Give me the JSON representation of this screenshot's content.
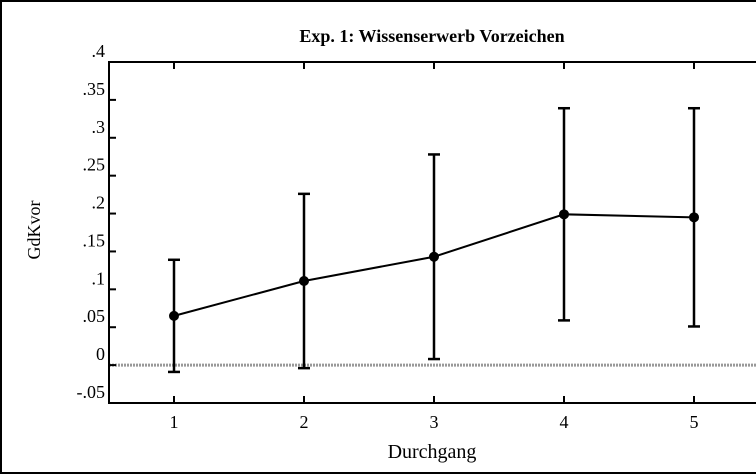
{
  "chart_data": {
    "type": "line",
    "title": "Exp. 1: Wissenserwerb Vorzeichen",
    "xlabel": "Durchgang",
    "ylabel": "GdKvor",
    "x": [
      1,
      2,
      3,
      4,
      5
    ],
    "series": [
      {
        "color": "#000000",
        "values": [
          0.065,
          0.111,
          0.143,
          0.199,
          0.195
        ],
        "errors": [
          0.074,
          0.115,
          0.135,
          0.14,
          0.144
        ]
      }
    ],
    "xlim": [
      0.5,
      5.5
    ],
    "xticks": [
      1,
      2,
      3,
      4,
      5
    ],
    "ylim": [
      -0.05,
      0.4
    ],
    "yticks": [
      {
        "value": -0.05,
        "label": "-.05"
      },
      0,
      {
        "value": 0.05,
        "label": ".05"
      },
      {
        "value": 0.1,
        "label": ".1"
      },
      {
        "value": 0.15,
        "label": ".15"
      },
      {
        "value": 0.2,
        "label": ".2"
      },
      {
        "value": 0.25,
        "label": ".25"
      },
      {
        "value": 0.3,
        "label": ".3"
      },
      {
        "value": 0.35,
        "label": ".35"
      },
      {
        "value": 0.4,
        "label": ".4"
      }
    ],
    "hline": 0
  }
}
